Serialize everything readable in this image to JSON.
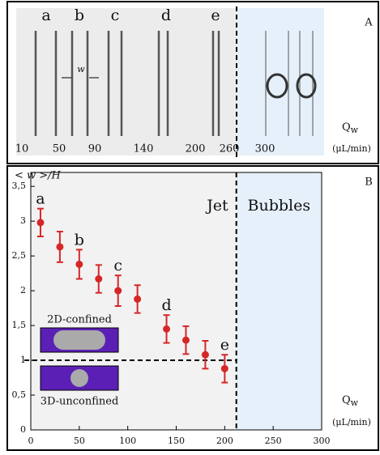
{
  "panel_a": {
    "label": "A",
    "jets": [
      {
        "letter": "a",
        "flow": 10
      },
      {
        "letter": "b",
        "flow": 50
      },
      {
        "letter": "c",
        "flow": 90
      },
      {
        "letter": "d",
        "flow": 140
      },
      {
        "letter": "e",
        "flow": 200
      }
    ],
    "bubble_flows": [
      260,
      300
    ],
    "width_symbol": "w",
    "axis_label": "Q",
    "axis_subscript": "w",
    "unit": "(μL/min)"
  },
  "chart_data": {
    "type": "scatter",
    "panel_label": "B",
    "y_label": "< w >/H",
    "x_label": "Q",
    "x_label_subscript": "w",
    "x_unit": "(μL/min)",
    "x": [
      10,
      30,
      50,
      70,
      90,
      110,
      140,
      160,
      180,
      200
    ],
    "series": [
      {
        "color": "#d62728",
        "values": [
          2.98,
          2.63,
          2.38,
          2.17,
          2.0,
          1.88,
          1.45,
          1.29,
          1.08,
          0.88
        ],
        "errors": [
          0.2,
          0.22,
          0.21,
          0.2,
          0.22,
          0.2,
          0.2,
          0.2,
          0.2,
          0.2
        ]
      }
    ],
    "annotations": [
      {
        "text": "a",
        "x": 10
      },
      {
        "text": "b",
        "x": 50
      },
      {
        "text": "c",
        "x": 90
      },
      {
        "text": "d",
        "x": 140
      },
      {
        "text": "e",
        "x": 200
      }
    ],
    "regions": [
      {
        "text": "Jet"
      },
      {
        "text": "Bubbles",
        "color": "#e6f0fa"
      }
    ],
    "regime_boundary_x": 212,
    "reference_y": 1,
    "insets": [
      {
        "text": "2D-confined"
      },
      {
        "text": "3D-unconfined"
      }
    ],
    "xlim": [
      0,
      300
    ],
    "xticks": [
      0,
      50,
      100,
      150,
      200,
      250,
      300
    ],
    "ylim": [
      0,
      3.7
    ],
    "yticks": [
      0,
      {
        "value": 0.5,
        "label": "0,5"
      },
      1,
      {
        "value": 1.5,
        "label": "1,5"
      },
      2,
      {
        "value": 2.5,
        "label": "2,5"
      },
      3,
      {
        "value": 3.5,
        "label": "3,5"
      }
    ]
  }
}
